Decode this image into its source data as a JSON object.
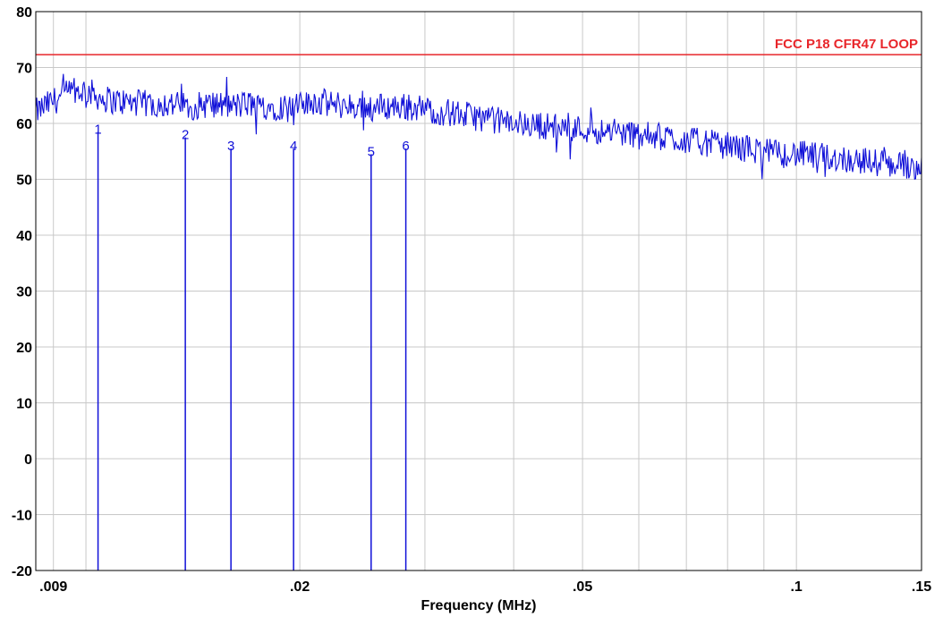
{
  "chart_data": {
    "type": "line",
    "xlabel": "Frequency (MHz)",
    "ylabel": "",
    "x_scale": "log",
    "xlim": [
      0.0085,
      0.15
    ],
    "ylim": [
      -20,
      80
    ],
    "grid": true,
    "y_ticks": [
      80,
      70,
      60,
      50,
      40,
      30,
      20,
      10,
      0,
      -10,
      -20
    ],
    "x_tick_labels": [
      {
        "value": 0.009,
        "label": ".009"
      },
      {
        "value": 0.02,
        "label": ".02"
      },
      {
        "value": 0.05,
        "label": ".05"
      },
      {
        "value": 0.1,
        "label": ".1"
      },
      {
        "value": 0.15,
        "label": ".15"
      }
    ],
    "x_gridlines": [
      0.009,
      0.01,
      0.02,
      0.03,
      0.04,
      0.05,
      0.06,
      0.07,
      0.08,
      0.09,
      0.1,
      0.15
    ],
    "limit_line": {
      "name": "FCC P18 CFR47 LOOP",
      "y": 72.3,
      "color": "#e8262b"
    },
    "trace": {
      "color": "#1010d8",
      "points": [
        [
          0.0085,
          62
        ],
        [
          0.009,
          64
        ],
        [
          0.0095,
          65.5
        ],
        [
          0.01,
          66
        ],
        [
          0.0105,
          64.5
        ],
        [
          0.011,
          64
        ],
        [
          0.012,
          63.5
        ],
        [
          0.013,
          63.5
        ],
        [
          0.014,
          63
        ],
        [
          0.015,
          63.5
        ],
        [
          0.016,
          63
        ],
        [
          0.017,
          63.5
        ],
        [
          0.018,
          63
        ],
        [
          0.019,
          63
        ],
        [
          0.02,
          63
        ],
        [
          0.021,
          64
        ],
        [
          0.022,
          63.5
        ],
        [
          0.024,
          63
        ],
        [
          0.026,
          63
        ],
        [
          0.028,
          63
        ],
        [
          0.03,
          62.5
        ],
        [
          0.032,
          62
        ],
        [
          0.034,
          61.5
        ],
        [
          0.036,
          61
        ],
        [
          0.038,
          60.5
        ],
        [
          0.04,
          60
        ],
        [
          0.045,
          59.5
        ],
        [
          0.05,
          59
        ],
        [
          0.055,
          58.5
        ],
        [
          0.06,
          58
        ],
        [
          0.065,
          57.5
        ],
        [
          0.07,
          57
        ],
        [
          0.075,
          56.5
        ],
        [
          0.08,
          56
        ],
        [
          0.085,
          55.5
        ],
        [
          0.09,
          55
        ],
        [
          0.095,
          54.5
        ],
        [
          0.1,
          54.5
        ],
        [
          0.11,
          54
        ],
        [
          0.12,
          53.5
        ],
        [
          0.13,
          53
        ],
        [
          0.14,
          52.5
        ],
        [
          0.15,
          52.5
        ]
      ],
      "noise_amplitude": 2.5
    },
    "markers": [
      {
        "label": "1",
        "x": 0.0104,
        "y": 58.5
      },
      {
        "label": "2",
        "x": 0.0138,
        "y": 57.5
      },
      {
        "label": "3",
        "x": 0.016,
        "y": 55.5
      },
      {
        "label": "4",
        "x": 0.0196,
        "y": 55.5
      },
      {
        "label": "5",
        "x": 0.0252,
        "y": 54.5
      },
      {
        "label": "6",
        "x": 0.0282,
        "y": 55.5
      }
    ]
  }
}
